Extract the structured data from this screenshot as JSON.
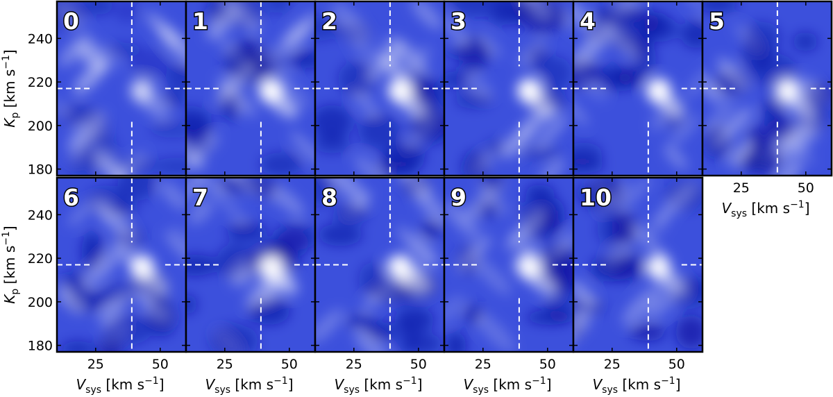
{
  "chart_data": {
    "type": "heatmap",
    "layout": "small-multiples",
    "colors": {
      "low": "#0a14a0",
      "mid": "#3c50dc",
      "high": "#ffffff",
      "marker": "#ffffff"
    },
    "xlabel": {
      "main": "V",
      "sub": "sys",
      "unit": "[km s",
      "exp": "−1",
      "close": "]"
    },
    "ylabel": {
      "main": "K",
      "sub": "p",
      "unit": "[km s",
      "exp": "−1",
      "close": "]"
    },
    "xlim": [
      10,
      60
    ],
    "ylim": [
      177,
      257
    ],
    "xticks": [
      25,
      50
    ],
    "yticks": [
      180,
      200,
      220,
      240
    ],
    "marker": {
      "vsys": 39,
      "kp": 217,
      "style": "dashed crosshair"
    },
    "panels": [
      {
        "label": "0",
        "peak_strength": 0.55,
        "background_level": 0.55
      },
      {
        "label": "1",
        "peak_strength": 1.0,
        "background_level": 0.3
      },
      {
        "label": "2",
        "peak_strength": 1.0,
        "background_level": 0.32
      },
      {
        "label": "3",
        "peak_strength": 1.0,
        "background_level": 0.3
      },
      {
        "label": "4",
        "peak_strength": 1.0,
        "background_level": 0.3
      },
      {
        "label": "5",
        "peak_strength": 0.95,
        "background_level": 0.28
      },
      {
        "label": "6",
        "peak_strength": 0.95,
        "background_level": 0.28
      },
      {
        "label": "7",
        "peak_strength": 0.95,
        "background_level": 0.3
      },
      {
        "label": "8",
        "peak_strength": 0.95,
        "background_level": 0.3
      },
      {
        "label": "9",
        "peak_strength": 0.95,
        "background_level": 0.3
      },
      {
        "label": "10",
        "peak_strength": 0.9,
        "background_level": 0.28
      }
    ]
  }
}
